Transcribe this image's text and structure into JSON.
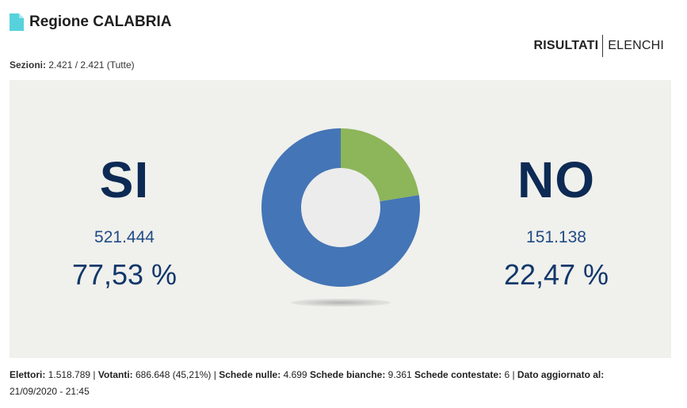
{
  "header": {
    "title": "Regione CALABRIA",
    "icon": "document-icon"
  },
  "tabs": [
    {
      "label": "RISULTATI",
      "active": true
    },
    {
      "label": "ELENCHI",
      "active": false
    }
  ],
  "sezioni": {
    "label": "Sezioni:",
    "value": "2.421 / 2.421 (Tutte)"
  },
  "results": {
    "si": {
      "label": "SI",
      "votes": "521.444",
      "percent": "77,53 %"
    },
    "no": {
      "label": "NO",
      "votes": "151.138",
      "percent": "22,47 %"
    }
  },
  "chart_data": {
    "type": "pie",
    "donut": true,
    "categories": [
      "SI",
      "NO"
    ],
    "values": [
      77.53,
      22.47
    ],
    "colors": [
      "#4475b6",
      "#8db55a"
    ],
    "center_color": "#ececec"
  },
  "footer": {
    "elettori_label": "Elettori:",
    "elettori": "1.518.789",
    "votanti_label": "Votanti:",
    "votanti": "686.648 (45,21%)",
    "nulle_label": "Schede nulle:",
    "nulle": "4.699",
    "bianche_label": "Schede bianche:",
    "bianche": "9.361",
    "contestate_label": "Schede contestate:",
    "contestate": "6",
    "aggiornato_label": "Dato aggiornato al:",
    "aggiornato": "21/09/2020 - 21:45"
  }
}
